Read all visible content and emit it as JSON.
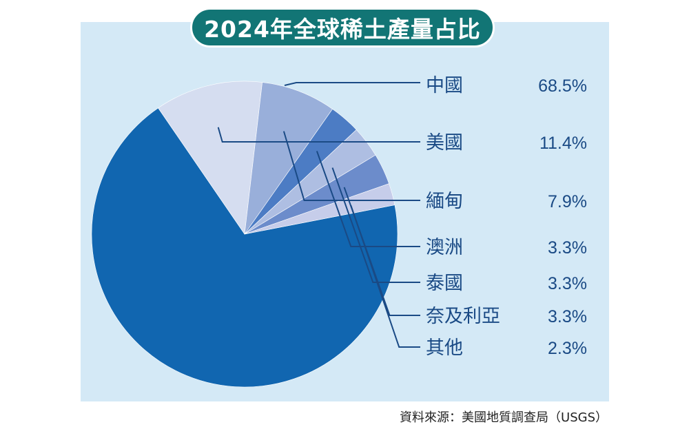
{
  "title": "2024年全球稀土產量占比",
  "source": "資料來源：美國地質調查局（USGS）",
  "chart_data": {
    "type": "pie",
    "title": "2024年全球稀土產量占比",
    "slices": [
      {
        "label": "中國",
        "value": 68.5,
        "display": "68.5%",
        "color": "#1166b0"
      },
      {
        "label": "美國",
        "value": 11.4,
        "display": "11.4%",
        "color": "#d5ddf0"
      },
      {
        "label": "緬甸",
        "value": 7.9,
        "display": "7.9%",
        "color": "#99afda"
      },
      {
        "label": "澳洲",
        "value": 3.3,
        "display": "3.3%",
        "color": "#4c7cc4"
      },
      {
        "label": "泰國",
        "value": 3.3,
        "display": "3.3%",
        "color": "#aebee2"
      },
      {
        "label": "奈及利亞",
        "value": 3.3,
        "display": "3.3%",
        "color": "#6c8ccb"
      },
      {
        "label": "其他",
        "value": 2.3,
        "display": "2.3%",
        "color": "#c6cdea"
      }
    ]
  }
}
